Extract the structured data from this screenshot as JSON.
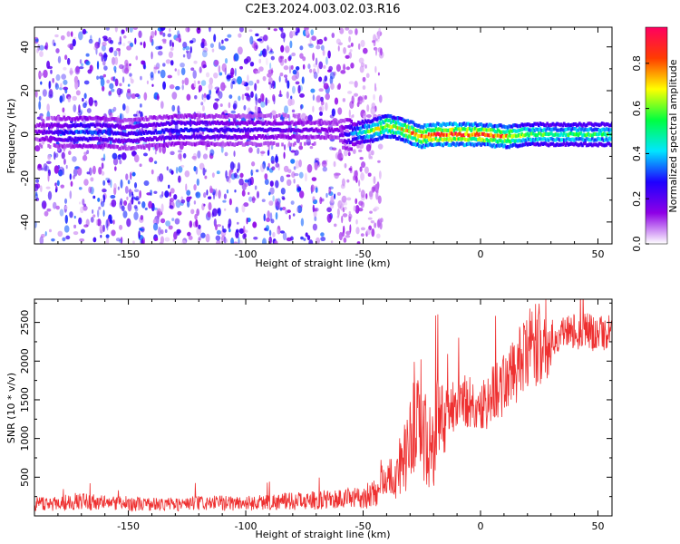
{
  "figure_title": "C2E3.2024.003.02.03.R16",
  "chart_data": [
    {
      "type": "heatmap",
      "xlabel": "Height of straight line (km)",
      "ylabel": "Frequency (Hz)",
      "xlim": [
        -190,
        56
      ],
      "ylim": [
        -50,
        49
      ],
      "xticks": [
        -150,
        -100,
        -50,
        0,
        50
      ],
      "yticks": [
        -40,
        -20,
        0,
        20,
        40
      ],
      "grid": false,
      "colorbar": {
        "label": "Normalized spectral amplitude",
        "range": [
          0,
          0.96
        ],
        "ticks": [
          0.0,
          0.2,
          0.4,
          0.6,
          0.8
        ],
        "colormap": [
          "#ffffff",
          "#8e00e6",
          "#1e00ff",
          "#00e6ff",
          "#00ff40",
          "#ffff00",
          "#ff3c00",
          "#ff0060"
        ]
      },
      "noise_region_x": [
        -190,
        -50
      ],
      "signal_band": {
        "x": [
          -190,
          -170,
          -160,
          -152,
          -130,
          -60,
          -55,
          -50,
          -45,
          -40,
          -35,
          -30,
          -25,
          -20,
          -10,
          0,
          10,
          20,
          30,
          40,
          56
        ],
        "center_hz": [
          null,
          1,
          1,
          0,
          2,
          null,
          0,
          1,
          2,
          4,
          3,
          1,
          -1,
          0,
          0,
          0,
          -1,
          0,
          0,
          0,
          0
        ],
        "peak_amplitude": [
          0.15,
          0.35,
          0.3,
          0.25,
          0.3,
          0.15,
          0.35,
          0.5,
          0.65,
          0.7,
          0.7,
          0.8,
          0.85,
          0.9,
          0.9,
          0.85,
          0.8,
          0.6,
          0.55,
          0.55,
          0.55
        ]
      }
    },
    {
      "type": "line",
      "xlabel": "Height of straight line (km)",
      "ylabel": "SNR (10 * v/v)",
      "xlim": [
        -190,
        56
      ],
      "ylim": [
        0,
        2800
      ],
      "xticks": [
        -150,
        -100,
        -50,
        0,
        50
      ],
      "yticks": [
        500,
        1000,
        1500,
        2000,
        2500
      ],
      "grid": false,
      "series": [
        {
          "color": "#ee3030",
          "x": [
            -190,
            -180,
            -170,
            -160,
            -150,
            -140,
            -130,
            -120,
            -110,
            -100,
            -90,
            -80,
            -70,
            -60,
            -52,
            -48,
            -44,
            -42,
            -40,
            -37,
            -34,
            -31,
            -28,
            -26,
            -24,
            -22,
            -20,
            -18,
            -15,
            -12,
            -9,
            -6,
            -3,
            0,
            3,
            6,
            9,
            12,
            15,
            18,
            21,
            24,
            27,
            30,
            33,
            36,
            39,
            42,
            45,
            48,
            51,
            54,
            56
          ],
          "y": [
            150,
            170,
            190,
            170,
            160,
            150,
            150,
            160,
            165,
            165,
            180,
            190,
            200,
            220,
            230,
            240,
            320,
            500,
            450,
            500,
            700,
            800,
            1300,
            1400,
            1100,
            900,
            800,
            1300,
            1350,
            1400,
            1500,
            1500,
            1400,
            1400,
            1500,
            1600,
            1700,
            1750,
            1900,
            2000,
            2150,
            2200,
            2250,
            2300,
            2330,
            2380,
            2400,
            2380,
            2420,
            2350,
            2380,
            2350,
            2380
          ]
        }
      ]
    }
  ]
}
